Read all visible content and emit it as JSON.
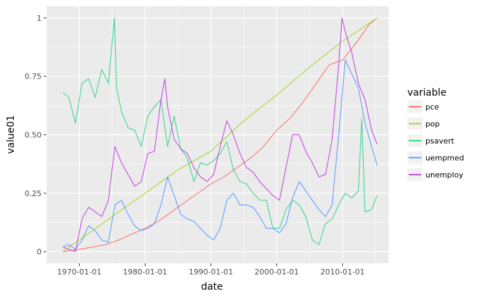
{
  "chart_data": {
    "type": "line",
    "xlabel": "date",
    "ylabel": "value01",
    "xlim": [
      "1965-01-01",
      "2017-01-01"
    ],
    "ylim": [
      -0.05,
      1.05
    ],
    "x_ticks": [
      "1970-01-01",
      "1980-01-01",
      "1990-01-01",
      "2000-01-01",
      "2010-01-01"
    ],
    "y_ticks": [
      0,
      0.25,
      0.5,
      0.75,
      1
    ],
    "y_tick_labels": [
      "0",
      "0.25",
      "0.50",
      "0.75",
      "1"
    ],
    "grid": true,
    "legend": {
      "title": "variable",
      "placement": "right"
    },
    "series": [
      {
        "name": "pce",
        "color": "#F8766D",
        "x": [
          "1967-07-01",
          "1970-01-01",
          "1972-01-01",
          "1974-01-01",
          "1976-01-01",
          "1978-01-01",
          "1980-01-01",
          "1982-01-01",
          "1984-01-01",
          "1986-01-01",
          "1988-01-01",
          "1990-01-01",
          "1992-01-01",
          "1994-01-01",
          "1996-01-01",
          "1998-01-01",
          "2000-01-01",
          "2002-01-01",
          "2004-01-01",
          "2006-01-01",
          "2008-01-01",
          "2010-01-01",
          "2012-01-01",
          "2014-01-01",
          "2015-04-01"
        ],
        "values": [
          0,
          0.01,
          0.02,
          0.03,
          0.05,
          0.075,
          0.1,
          0.13,
          0.17,
          0.21,
          0.25,
          0.29,
          0.32,
          0.36,
          0.4,
          0.45,
          0.52,
          0.57,
          0.64,
          0.72,
          0.8,
          0.82,
          0.89,
          0.97,
          1
        ]
      },
      {
        "name": "pop",
        "color": "#A3D934",
        "x": [
          "1967-07-01",
          "1970-01-01",
          "1975-01-01",
          "1980-01-01",
          "1985-01-01",
          "1990-01-01",
          "1995-01-01",
          "2000-01-01",
          "2005-01-01",
          "2010-01-01",
          "2015-04-01"
        ],
        "values": [
          0,
          0.05,
          0.15,
          0.25,
          0.35,
          0.43,
          0.56,
          0.67,
          0.79,
          0.9,
          1
        ]
      },
      {
        "name": "psavert",
        "color": "#3CD68C",
        "x": [
          "1967-07-01",
          "1968-06-01",
          "1969-06-01",
          "1970-06-01",
          "1971-06-01",
          "1972-06-01",
          "1973-06-01",
          "1974-06-01",
          "1975-05-01",
          "1975-09-01",
          "1976-06-01",
          "1977-06-01",
          "1978-06-01",
          "1979-06-01",
          "1980-06-01",
          "1981-06-01",
          "1982-06-01",
          "1983-06-01",
          "1984-06-01",
          "1985-06-01",
          "1986-06-01",
          "1987-06-01",
          "1988-06-01",
          "1989-06-01",
          "1990-06-01",
          "1991-06-01",
          "1992-06-01",
          "1993-06-01",
          "1994-06-01",
          "1995-06-01",
          "1996-06-01",
          "1997-06-01",
          "1998-06-01",
          "1999-06-01",
          "2000-06-01",
          "2001-06-01",
          "2002-06-01",
          "2003-06-01",
          "2004-06-01",
          "2005-06-01",
          "2006-06-01",
          "2007-06-01",
          "2008-06-01",
          "2009-06-01",
          "2010-06-01",
          "2011-06-01",
          "2012-06-01",
          "2012-12-01",
          "2013-06-01",
          "2014-06-01",
          "2015-04-01"
        ],
        "values": [
          0.68,
          0.66,
          0.55,
          0.72,
          0.74,
          0.66,
          0.78,
          0.72,
          1.0,
          0.7,
          0.6,
          0.53,
          0.52,
          0.45,
          0.58,
          0.62,
          0.65,
          0.45,
          0.58,
          0.44,
          0.4,
          0.3,
          0.38,
          0.37,
          0.39,
          0.42,
          0.47,
          0.35,
          0.3,
          0.29,
          0.25,
          0.22,
          0.22,
          0.1,
          0.1,
          0.18,
          0.22,
          0.2,
          0.15,
          0.05,
          0.03,
          0.12,
          0.14,
          0.2,
          0.25,
          0.23,
          0.26,
          0.57,
          0.17,
          0.18,
          0.24
        ]
      },
      {
        "name": "uempmed",
        "color": "#619CFF",
        "x": [
          "1967-07-01",
          "1968-06-01",
          "1969-06-01",
          "1970-06-01",
          "1971-06-01",
          "1972-06-01",
          "1973-06-01",
          "1974-06-01",
          "1975-06-01",
          "1976-06-01",
          "1977-06-01",
          "1978-06-01",
          "1979-06-01",
          "1980-06-01",
          "1981-06-01",
          "1982-06-01",
          "1983-06-01",
          "1984-06-01",
          "1985-06-01",
          "1986-06-01",
          "1987-06-01",
          "1988-06-01",
          "1989-06-01",
          "1990-06-01",
          "1991-06-01",
          "1992-06-01",
          "1993-06-01",
          "1994-06-01",
          "1995-06-01",
          "1996-06-01",
          "1997-06-01",
          "1998-06-01",
          "1999-06-01",
          "2000-06-01",
          "2001-06-01",
          "2002-06-01",
          "2003-06-01",
          "2004-06-01",
          "2005-06-01",
          "2006-06-01",
          "2007-06-01",
          "2008-06-01",
          "2009-06-01",
          "2010-06-01",
          "2011-06-01",
          "2012-06-01",
          "2013-06-01",
          "2014-06-01",
          "2015-04-01"
        ],
        "values": [
          0.02,
          0.03,
          0.01,
          0.05,
          0.11,
          0.09,
          0.05,
          0.04,
          0.2,
          0.22,
          0.16,
          0.11,
          0.09,
          0.1,
          0.12,
          0.2,
          0.32,
          0.24,
          0.16,
          0.14,
          0.13,
          0.1,
          0.07,
          0.05,
          0.1,
          0.22,
          0.25,
          0.2,
          0.2,
          0.19,
          0.15,
          0.1,
          0.1,
          0.08,
          0.12,
          0.23,
          0.3,
          0.26,
          0.22,
          0.18,
          0.15,
          0.2,
          0.5,
          0.82,
          0.76,
          0.7,
          0.55,
          0.45,
          0.37
        ]
      },
      {
        "name": "unemploy",
        "color": "#C649DD",
        "x": [
          "1967-07-01",
          "1968-06-01",
          "1969-06-01",
          "1970-06-01",
          "1971-06-01",
          "1972-06-01",
          "1973-06-01",
          "1974-06-01",
          "1975-06-01",
          "1976-06-01",
          "1977-06-01",
          "1978-06-01",
          "1979-06-01",
          "1980-06-01",
          "1981-06-01",
          "1982-06-01",
          "1983-01-01",
          "1983-06-01",
          "1984-06-01",
          "1985-06-01",
          "1986-06-01",
          "1987-06-01",
          "1988-06-01",
          "1989-06-01",
          "1990-06-01",
          "1991-06-01",
          "1992-06-01",
          "1993-06-01",
          "1994-06-01",
          "1995-06-01",
          "1996-06-01",
          "1997-06-01",
          "1998-06-01",
          "1999-06-01",
          "2000-06-01",
          "2001-06-01",
          "2002-06-01",
          "2003-06-01",
          "2004-06-01",
          "2005-06-01",
          "2006-06-01",
          "2007-06-01",
          "2008-06-01",
          "2009-06-01",
          "2009-12-01",
          "2010-06-01",
          "2011-06-01",
          "2012-06-01",
          "2013-06-01",
          "2014-06-01",
          "2015-04-01"
        ],
        "values": [
          0.02,
          0.01,
          0.0,
          0.14,
          0.19,
          0.17,
          0.15,
          0.22,
          0.45,
          0.38,
          0.33,
          0.28,
          0.3,
          0.42,
          0.43,
          0.65,
          0.74,
          0.62,
          0.48,
          0.44,
          0.42,
          0.36,
          0.32,
          0.3,
          0.33,
          0.45,
          0.56,
          0.5,
          0.42,
          0.36,
          0.34,
          0.3,
          0.27,
          0.24,
          0.22,
          0.36,
          0.5,
          0.5,
          0.43,
          0.38,
          0.32,
          0.33,
          0.48,
          0.8,
          1.0,
          0.94,
          0.85,
          0.72,
          0.65,
          0.52,
          0.46
        ]
      }
    ]
  }
}
